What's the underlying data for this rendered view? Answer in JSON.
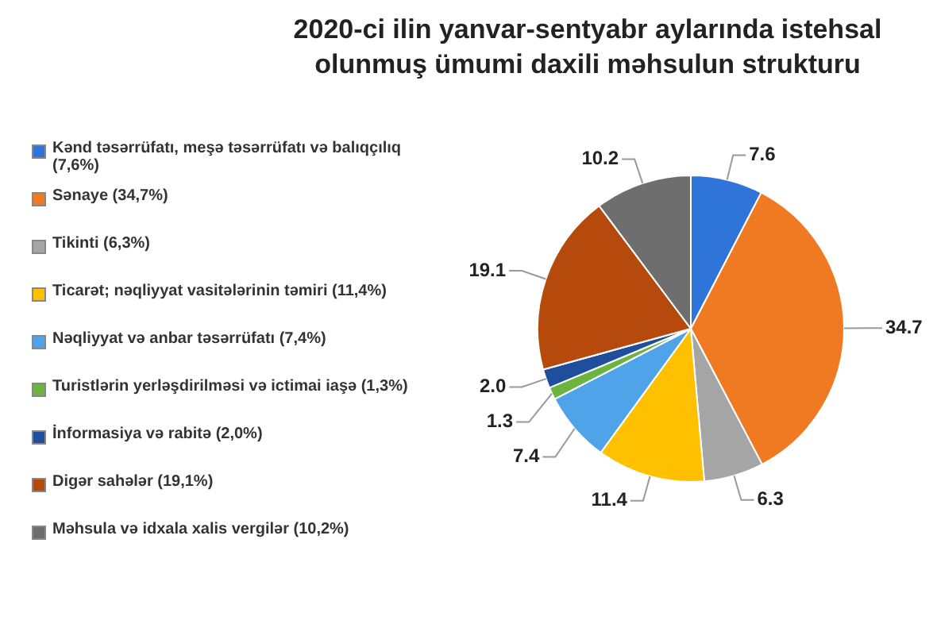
{
  "chart_data": {
    "type": "pie",
    "title": "2020-ci ilin yanvar-sentyabr aylarında istehsal olunmuş ümumi daxili məhsulun strukturu",
    "categories": [
      "Kənd təsərrüfatı, meşə təsərrüfatı və balıqçılıq (7,6%)",
      "Sənaye (34,7%)",
      "Tikinti (6,3%)",
      "Ticarət; nəqliyyat vasitələrinin təmiri (11,4%)",
      "Nəqliyyat və anbar təsərrüfatı (7,4%)",
      "Turistlərin yerləşdirilməsi və ictimai iaşə (1,3%)",
      "İnformasiya və rabitə (2,0%)",
      "Digər sahələr (19,1%)",
      "Məhsula və idxala xalis vergilər (10,2%)"
    ],
    "values": [
      7.6,
      34.7,
      6.3,
      11.4,
      7.4,
      1.3,
      2.0,
      19.1,
      10.2
    ],
    "value_labels": [
      "7.6",
      "34.7",
      "6.3",
      "11.4",
      "7.4",
      "1.3",
      "2.0",
      "19.1",
      "10.2"
    ],
    "colors": [
      "#2f74d8",
      "#f07a22",
      "#a5a5a5",
      "#ffc000",
      "#4fa3e8",
      "#6cb33f",
      "#1f4e9c",
      "#b54a0c",
      "#6e6e6e"
    ],
    "legend": "left"
  }
}
